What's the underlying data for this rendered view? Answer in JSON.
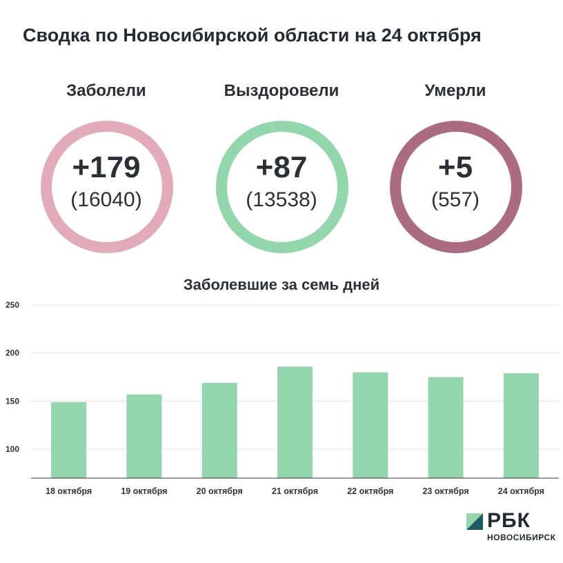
{
  "title": "Сводка по Новосибирской области на 24 октября",
  "stats": [
    {
      "label": "Заболели",
      "delta": "+179",
      "total": "(16040)",
      "color": "#e1abba"
    },
    {
      "label": "Выздоровели",
      "delta": "+87",
      "total": "(13538)",
      "color": "#93d6ab"
    },
    {
      "label": "Умерли",
      "delta": "+5",
      "total": "(557)",
      "color": "#ab6b82"
    }
  ],
  "chart_data": {
    "type": "bar",
    "title": "Заболевшие за семь дней",
    "categories": [
      "18 октября",
      "19 октября",
      "20 октября",
      "21 октября",
      "22 октября",
      "23 октября",
      "24 октября"
    ],
    "values": [
      149,
      157,
      169,
      186,
      180,
      175,
      179
    ],
    "yticks": [
      100,
      150,
      200,
      250
    ],
    "ylim": [
      70,
      250
    ],
    "bar_color": "#93d6ab",
    "grid": true
  },
  "logo": {
    "text": "РБК",
    "subtitle": "НОВОСИБИРСК"
  }
}
